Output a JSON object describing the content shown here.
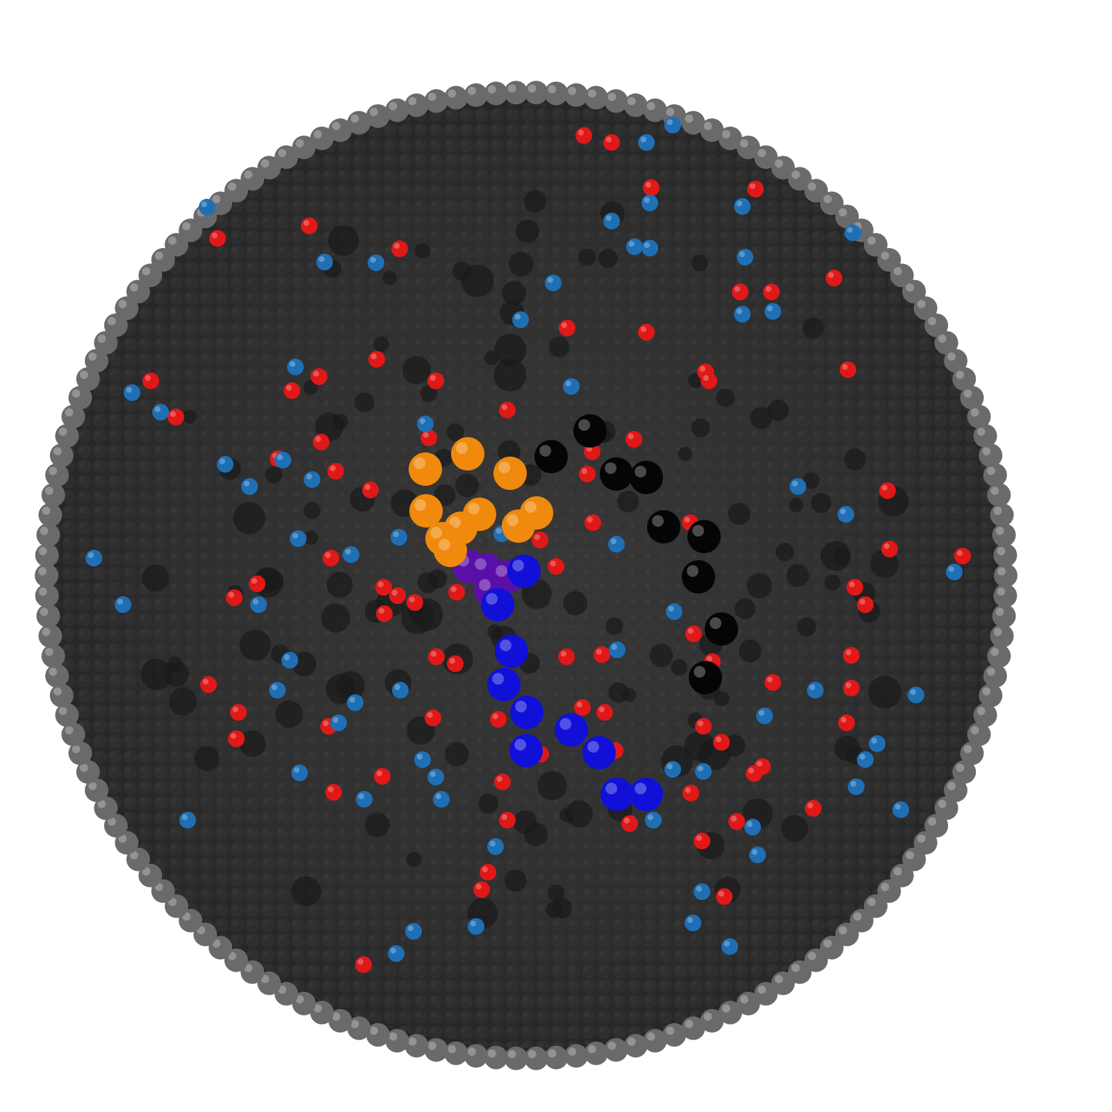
{
  "scene": {
    "subject": "spherical-shell-cutaway-particle-render",
    "background_color": "#ffffff",
    "colors": {
      "rim_bead": "#6a6a6a",
      "shell_interior": "#2f2f2f",
      "shell_bead": "#3a3a3a",
      "red_particle": "#e01818",
      "light_blue_particle": "#1f6fb5",
      "blue_chain_bead": "#1010d8",
      "purple_chain_bead": "#5a10a8",
      "orange_chain_bead": "#f08a0c",
      "black_chain_bead": "#050505"
    },
    "particle_groups": [
      {
        "name": "red-particles",
        "color_key": "red_particle"
      },
      {
        "name": "light-blue-particles",
        "color_key": "light_blue_particle"
      },
      {
        "name": "orange-chain",
        "color_key": "orange_chain_bead"
      },
      {
        "name": "purple-chain",
        "color_key": "purple_chain_bead"
      },
      {
        "name": "blue-chain",
        "color_key": "blue_chain_bead"
      },
      {
        "name": "black-chain",
        "color_key": "black_chain_bead"
      }
    ]
  }
}
